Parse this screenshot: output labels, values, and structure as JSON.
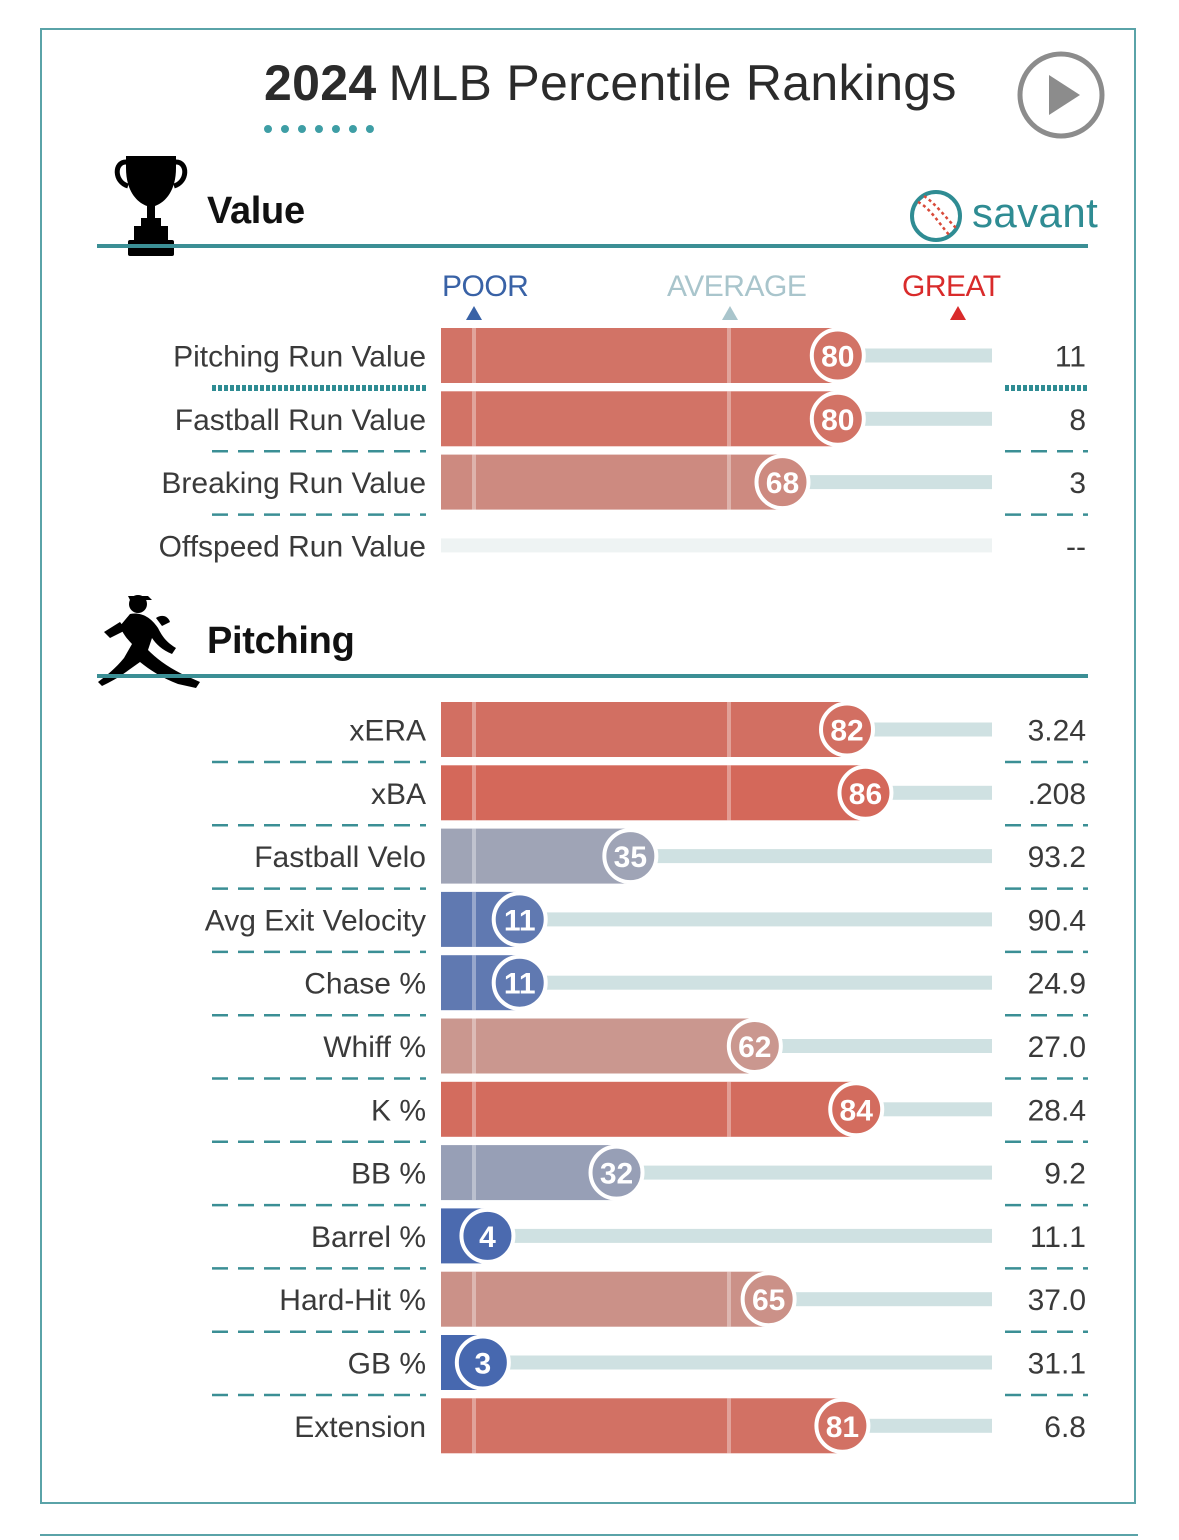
{
  "title": {
    "year": "2024",
    "text": "MLB Percentile Rankings"
  },
  "brand": {
    "name": "savant"
  },
  "legend": {
    "poor": "POOR",
    "average": "AVERAGE",
    "great": "GREAT"
  },
  "colors": {
    "accent": "#3b8f95",
    "poor": "#3962a6",
    "average": "#a9c5cc",
    "great": "#d92b2b"
  },
  "chart_data": {
    "type": "bar",
    "title": "2024 MLB Percentile Rankings",
    "xlim": [
      0,
      100
    ],
    "sections": [
      {
        "name": "Value",
        "icon": "trophy-icon",
        "metrics": [
          {
            "label": "Pitching Run Value",
            "percentile": 80,
            "value": "11",
            "emphasized": true
          },
          {
            "label": "Fastball Run Value",
            "percentile": 80,
            "value": "8"
          },
          {
            "label": "Breaking Run Value",
            "percentile": 68,
            "value": "3"
          },
          {
            "label": "Offspeed Run Value",
            "percentile": null,
            "value": "--"
          }
        ]
      },
      {
        "name": "Pitching",
        "icon": "pitcher-icon",
        "metrics": [
          {
            "label": "xERA",
            "percentile": 82,
            "value": "3.24"
          },
          {
            "label": "xBA",
            "percentile": 86,
            "value": ".208"
          },
          {
            "label": "Fastball Velo",
            "percentile": 35,
            "value": "93.2"
          },
          {
            "label": "Avg Exit Velocity",
            "percentile": 11,
            "value": "90.4"
          },
          {
            "label": "Chase %",
            "percentile": 11,
            "value": "24.9"
          },
          {
            "label": "Whiff %",
            "percentile": 62,
            "value": "27.0"
          },
          {
            "label": "K %",
            "percentile": 84,
            "value": "28.4"
          },
          {
            "label": "BB %",
            "percentile": 32,
            "value": "9.2"
          },
          {
            "label": "Barrel %",
            "percentile": 4,
            "value": "11.1"
          },
          {
            "label": "Hard-Hit %",
            "percentile": 65,
            "value": "37.0"
          },
          {
            "label": "GB %",
            "percentile": 3,
            "value": "31.1"
          },
          {
            "label": "Extension",
            "percentile": 81,
            "value": "6.8"
          }
        ]
      }
    ]
  }
}
